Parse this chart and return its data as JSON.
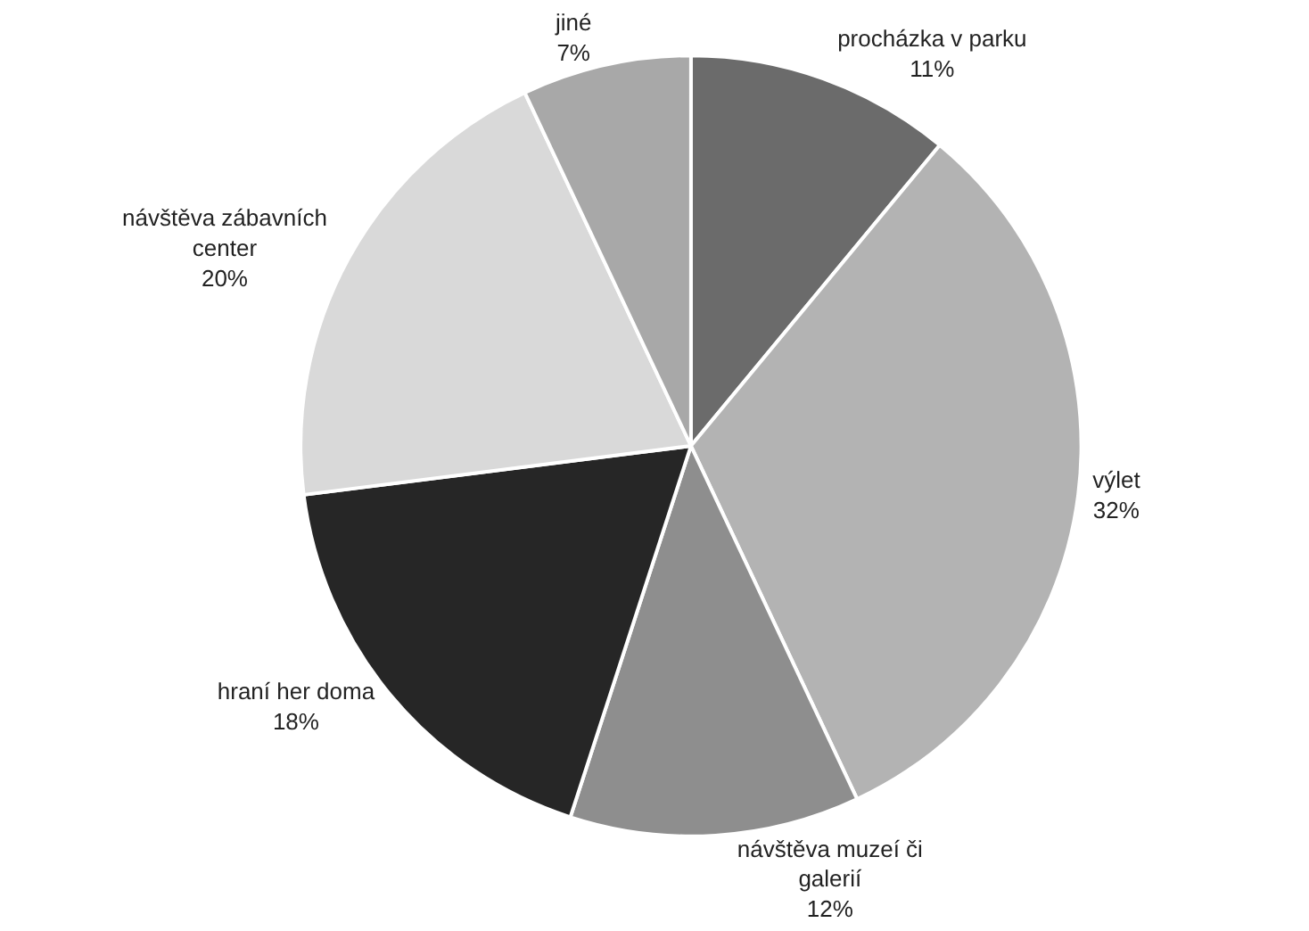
{
  "chart_data": {
    "type": "pie",
    "categories": [
      "procházka v parku",
      "výlet",
      "návštěva muzeí či galerií",
      "hraní her doma",
      "návštěva zábavních center",
      "jiné"
    ],
    "values": [
      11,
      32,
      12,
      18,
      20,
      7
    ],
    "value_labels": [
      "11%",
      "32%",
      "12%",
      "18%",
      "20%",
      "7%"
    ],
    "colors": [
      "#6b6b6b",
      "#b3b3b3",
      "#8e8e8e",
      "#262626",
      "#d9d9d9",
      "#a8a8a8"
    ],
    "legend": false
  }
}
